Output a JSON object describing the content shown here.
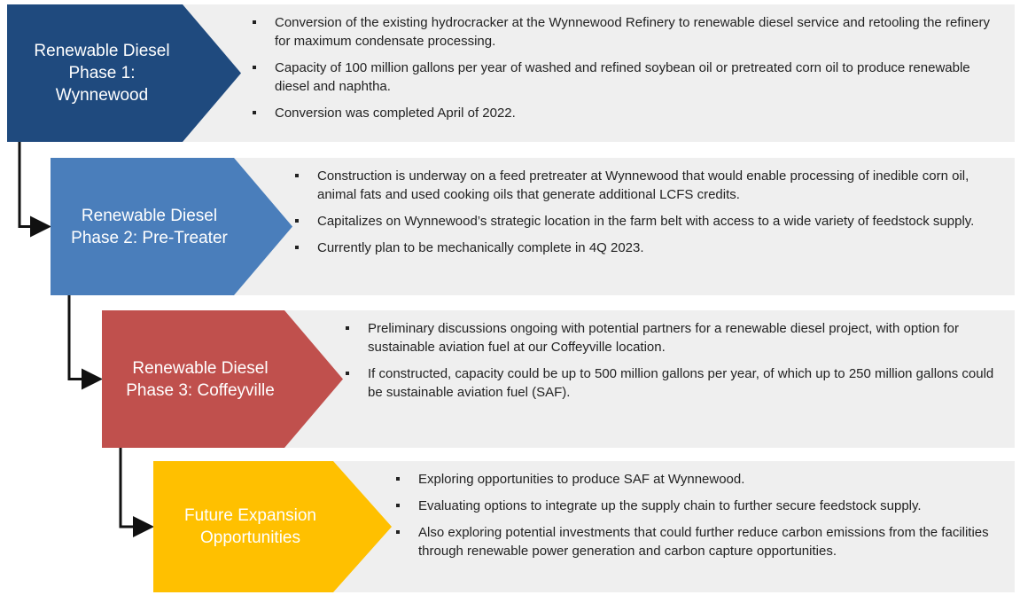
{
  "phases": [
    {
      "label": "Renewable Diesel Phase 1: Wynnewood",
      "bullets": [
        "Conversion of the existing hydrocracker at the Wynnewood Refinery to renewable diesel service and retooling the refinery for maximum condensate processing.",
        "Capacity of 100 million gallons per year of washed and refined soybean oil or pretreated corn oil to produce renewable diesel and naphtha.",
        "Conversion was completed April of 2022."
      ]
    },
    {
      "label": "Renewable Diesel Phase 2: Pre-Treater",
      "bullets": [
        "Construction is underway on a feed pretreater at Wynnewood that would enable processing of inedible corn oil, animal fats and used cooking oils that generate additional LCFS credits.",
        "Capitalizes on Wynnewood’s strategic location in the farm belt with access to a wide variety of feedstock supply.",
        "Currently plan to be mechanically complete in 4Q 2023."
      ]
    },
    {
      "label": "Renewable Diesel Phase 3: Coffeyville",
      "bullets": [
        "Preliminary discussions ongoing with potential partners for a renewable diesel project, with option for sustainable aviation fuel at our Coffeyville location.",
        "If constructed, capacity could be up to 500 million gallons per year, of which up to 250 million gallons could be sustainable aviation fuel (SAF)."
      ]
    },
    {
      "label": "Future Expansion Opportunities",
      "bullets": [
        "Exploring opportunities to produce SAF at Wynnewood.",
        "Evaluating options to integrate up the supply chain to further secure feedstock supply.",
        "Also exploring potential investments that could further reduce carbon emissions from the facilities through renewable power generation and carbon capture opportunities."
      ]
    }
  ]
}
